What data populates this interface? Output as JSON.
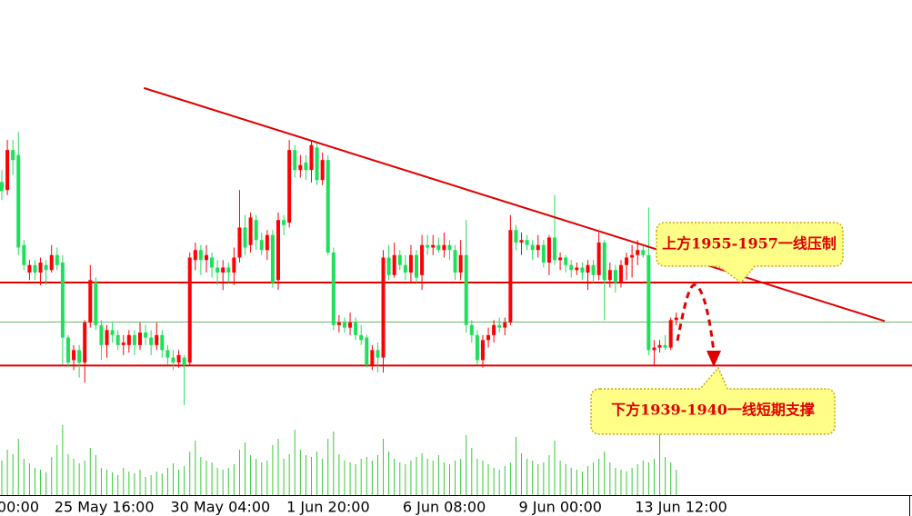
{
  "chart_data": {
    "type": "candlestick",
    "first_label": "00:00",
    "categories": [
      null,
      null,
      null,
      null,
      null,
      null,
      null,
      null,
      null,
      null,
      "25 May 16:00",
      null,
      null,
      null,
      null,
      null,
      null,
      null,
      null,
      null,
      null,
      null,
      null,
      null,
      null,
      null,
      null,
      null,
      null,
      null,
      null,
      "30 May 04:00",
      null,
      null,
      null,
      null,
      null,
      null,
      null,
      null,
      null,
      null,
      null,
      null,
      null,
      null,
      null,
      null,
      null,
      null,
      null,
      null,
      "1 Jun 20:00",
      null,
      null,
      null,
      null,
      null,
      null,
      null,
      null,
      null,
      null,
      null,
      null,
      null,
      null,
      null,
      null,
      null,
      null,
      null,
      null,
      "6 Jun 08:00",
      null,
      null,
      null,
      null,
      null,
      null,
      null,
      null,
      null,
      null,
      null,
      null,
      null,
      null,
      null,
      null,
      null,
      null,
      null,
      null,
      "9 Jun 00:00",
      null,
      null,
      null,
      null,
      null,
      null,
      null,
      null,
      null,
      null,
      null,
      null,
      null,
      null,
      null,
      null,
      null,
      null,
      null,
      null,
      "13 Jun 12:00",
      null,
      null,
      null,
      null,
      null,
      null,
      null
    ],
    "open": [
      1976.6,
      1975,
      1983,
      1982,
      1964,
      1958.5,
      1960,
      1958.5,
      1960,
      1959,
      1962,
      1960.5,
      1945.5,
      1941,
      1943,
      1940.5,
      1948.5,
      1956.5,
      1948,
      1944,
      1947,
      1946,
      1944,
      1944,
      1946,
      1944,
      1946.5,
      1945.5,
      1944,
      1946,
      1943,
      1941.5,
      1940.5,
      1941.5,
      1940.5,
      1961,
      1963,
      1961,
      1961.5,
      1959.5,
      1958.5,
      1959.5,
      1958.5,
      1961.5,
      1967.5,
      1964,
      1969,
      1965,
      1963,
      1966,
      1957,
      1969,
      1968.5,
      1983,
      1979,
      1980.5,
      1979,
      1983.5,
      1977,
      1981,
      1962.5,
      1948,
      1948.5,
      1947.5,
      1948.5,
      1946,
      1945.5,
      1940,
      1943,
      1941.5,
      1961.5,
      1958,
      1962,
      1960,
      1958.5,
      1962,
      1958,
      1964,
      1963.5,
      1964,
      1963,
      1964,
      1963,
      1958.5,
      1962,
      1948,
      1946,
      1941,
      1945,
      1946,
      1948,
      1947.5,
      1948.5,
      1967,
      1964.5,
      1965,
      1964,
      1963,
      1964,
      1960.5,
      1965.5,
      1961,
      1961.5,
      1960,
      1959,
      1959.5,
      1958.5,
      1960,
      1958,
      1964.5,
      1957,
      1959,
      1956.5,
      1960,
      1961.5,
      1962,
      1963,
      1962,
      1943,
      1943.5,
      1944,
      1943.5,
      1949
    ],
    "high": [
      1979,
      1985,
      1985,
      1986.6,
      1965,
      1961,
      1961,
      1961.5,
      1961,
      1964,
      1963.5,
      1962,
      1946,
      1944,
      1944,
      1949,
      1960,
      1957.5,
      1949,
      1948,
      1948.5,
      1947,
      1946,
      1947,
      1947,
      1948.5,
      1948,
      1947,
      1948.5,
      1947,
      1944,
      1943,
      1943,
      1942,
      1962.5,
      1964.5,
      1964,
      1964,
      1962.5,
      1961,
      1961,
      1960.5,
      1963.5,
      1975,
      1970,
      1970.5,
      1970,
      1966.5,
      1967,
      1967,
      1970.5,
      1970,
      1985,
      1984,
      1982,
      1982,
      1985,
      1984.5,
      1982.5,
      1982,
      1963.5,
      1950,
      1949.5,
      1950.5,
      1949.5,
      1948,
      1946,
      1944,
      1944.5,
      1963,
      1964,
      1964.5,
      1963,
      1962,
      1964,
      1963,
      1966,
      1966,
      1966,
      1965.5,
      1966.5,
      1965,
      1964,
      1965,
      1969,
      1949,
      1947,
      1946,
      1947.5,
      1949,
      1949.5,
      1949.5,
      1970,
      1968,
      1966.5,
      1966,
      1965,
      1966,
      1965,
      1966,
      1974,
      1962.5,
      1962,
      1961,
      1960.5,
      1960.5,
      1961,
      1961,
      1966.5,
      1965,
      1960.5,
      1960,
      1961,
      1962.5,
      1964,
      1965,
      1964,
      1971.5,
      1945,
      1945,
      1946,
      1949.5,
      1950.5
    ],
    "low": [
      1973,
      1974,
      1978,
      1962,
      1959,
      1957,
      1957,
      1956,
      1956,
      1958.5,
      1959,
      1940,
      1939.5,
      1939,
      1937.5,
      1936.5,
      1947.5,
      1947,
      1941,
      1941.5,
      1944.5,
      1943,
      1942,
      1942.5,
      1942,
      1943,
      1944,
      1942,
      1943,
      1941.5,
      1940,
      1939,
      1939.5,
      1932,
      1940,
      1959,
      1958,
      1958.5,
      1957.5,
      1956,
      1955,
      1956.5,
      1956,
      1960.5,
      1962,
      1962.5,
      1963,
      1962,
      1961,
      1955.5,
      1955,
      1966,
      1967.5,
      1977.5,
      1977.5,
      1977,
      1976.5,
      1976,
      1976,
      1962,
      1947,
      1946.5,
      1946.5,
      1946,
      1945,
      1944,
      1939.5,
      1939,
      1938.5,
      1938.5,
      1957,
      1957.5,
      1959,
      1957,
      1956.5,
      1956.5,
      1955,
      1962,
      1962,
      1962.5,
      1961.5,
      1961,
      1957,
      1957,
      1946.5,
      1944.5,
      1940,
      1939.5,
      1943.5,
      1944.5,
      1946.5,
      1946,
      1948,
      1963,
      1962,
      1963,
      1961,
      1961.5,
      1959.5,
      1958,
      1960,
      1959,
      1958.5,
      1957.5,
      1958,
      1957,
      1955,
      1956.5,
      1957,
      1949,
      1955.5,
      1954.5,
      1955.5,
      1957,
      1957.5,
      1960,
      1961.5,
      1942,
      1940,
      1942.5,
      1943,
      1943,
      1948
    ],
    "close": [
      1974.8,
      1983,
      1981,
      1963.5,
      1960,
      1960,
      1958.5,
      1960.5,
      1959,
      1962,
      1960,
      1945.5,
      1940.5,
      1943,
      1940.5,
      1948.5,
      1957,
      1948,
      1944,
      1947,
      1946,
      1944,
      1944.5,
      1946,
      1944,
      1946.5,
      1945.5,
      1944,
      1946,
      1943,
      1941.5,
      1940.5,
      1942,
      1940,
      1961.5,
      1963,
      1961,
      1962,
      1959.5,
      1958.5,
      1959.5,
      1958.5,
      1961.5,
      1967.5,
      1963.5,
      1969.5,
      1965,
      1963,
      1966,
      1956.5,
      1969,
      1968,
      1983,
      1979,
      1980,
      1979,
      1984,
      1977,
      1981,
      1962.5,
      1948,
      1948.5,
      1947.5,
      1948.5,
      1946,
      1945,
      1940,
      1943,
      1941.5,
      1961.5,
      1958,
      1962,
      1960,
      1958.5,
      1962,
      1957.5,
      1964,
      1963.5,
      1964,
      1963,
      1964,
      1963,
      1958.5,
      1962,
      1948,
      1946,
      1941,
      1945,
      1946,
      1948,
      1947.5,
      1948.5,
      1967,
      1964.5,
      1965,
      1964,
      1963,
      1964,
      1960.5,
      1965.5,
      1961,
      1961.5,
      1960,
      1959,
      1959.5,
      1958.5,
      1960,
      1958,
      1964.5,
      1957,
      1959,
      1956.5,
      1960,
      1961.5,
      1962,
      1963,
      1962,
      1943,
      1943.5,
      1944,
      1943.5,
      1949,
      1949.5
    ],
    "volume": [
      38,
      50,
      45,
      62,
      40,
      35,
      30,
      28,
      25,
      42,
      55,
      77,
      45,
      40,
      35,
      38,
      52,
      44,
      30,
      28,
      25,
      22,
      30,
      26,
      24,
      28,
      20,
      22,
      26,
      24,
      30,
      35,
      28,
      32,
      48,
      60,
      42,
      38,
      36,
      30,
      28,
      30,
      34,
      50,
      58,
      44,
      40,
      36,
      38,
      55,
      62,
      40,
      45,
      72,
      50,
      44,
      42,
      48,
      40,
      62,
      70,
      45,
      38,
      36,
      34,
      40,
      42,
      38,
      44,
      62,
      48,
      40,
      36,
      34,
      38,
      42,
      46,
      40,
      38,
      44,
      36,
      34,
      38,
      40,
      66,
      52,
      40,
      38,
      34,
      30,
      28,
      32,
      36,
      64,
      46,
      40,
      38,
      34,
      36,
      44,
      60,
      38,
      34,
      30,
      28,
      26,
      32,
      36,
      40,
      48,
      36,
      30,
      28,
      26,
      30,
      34,
      38,
      36,
      40,
      77,
      42,
      36,
      28
    ],
    "ylim": [
      1914,
      2013
    ],
    "vol_lim": [
      0,
      100
    ],
    "up_color": "#ff0000",
    "down_color": "#1fe05a",
    "volume_color": "#33cc33",
    "hlines": [
      1956.5,
      1939.9
    ],
    "hline_color": "#e00000",
    "bid_line": 1948.6,
    "bid_color": "#66bb66",
    "trendline": {
      "x": [
        25.7,
        159.7
      ],
      "y": [
        1995.4,
        1948.8
      ],
      "color": "#e00000"
    },
    "annotations": [
      "上方1955-1957一线压制",
      "下方1939-1940一线短期支撑"
    ]
  }
}
